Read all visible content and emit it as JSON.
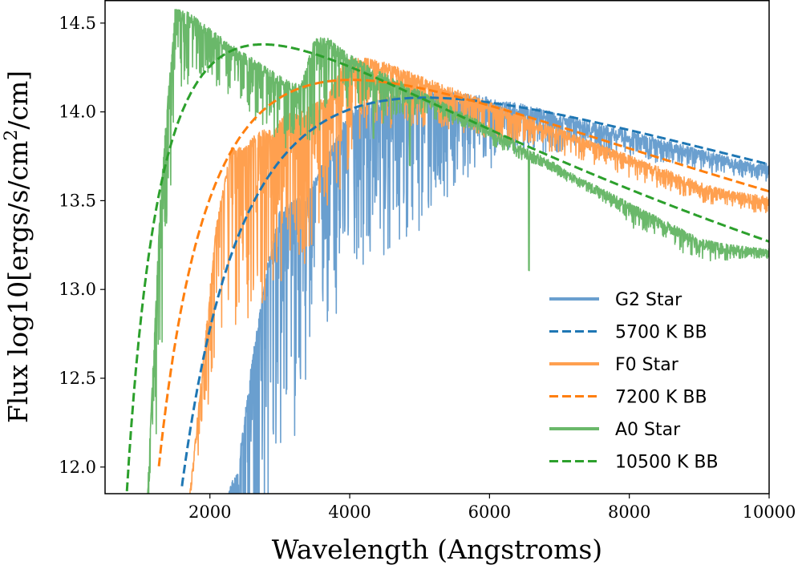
{
  "chart_data": {
    "type": "line",
    "title": "",
    "xlabel": "Wavelength (Angstroms)",
    "ylabel_main": "Flux log10[ergs/s/cm",
    "ylabel_sup": "2",
    "ylabel_tail": "/cm]",
    "xlim": [
      500,
      10000
    ],
    "ylim": [
      11.85,
      14.63
    ],
    "xticks": [
      2000,
      4000,
      6000,
      8000,
      10000
    ],
    "xtick_labels": [
      "2000",
      "4000",
      "6000",
      "8000",
      "10000"
    ],
    "yticks": [
      12.0,
      12.5,
      13.0,
      13.5,
      14.0,
      14.5
    ],
    "ytick_labels": [
      "12.0",
      "12.5",
      "13.0",
      "13.5",
      "14.0",
      "14.5"
    ],
    "legend_position": "lower-right",
    "series": [
      {
        "name": "G2 Star",
        "kind": "spectrum",
        "color": "#6a9fcf",
        "start": 2200,
        "step": 200,
        "envelope": [
          11.8,
          12.0,
          12.6,
          13.1,
          13.45,
          13.5,
          13.55,
          13.7,
          13.85,
          14.02,
          14.05,
          14.07,
          14.09,
          14.1,
          14.1,
          14.12,
          14.12,
          14.1,
          14.1,
          14.08,
          14.06,
          14.05,
          14.03,
          14.01,
          13.99,
          13.97,
          13.95,
          13.93,
          13.91,
          13.89,
          13.87,
          13.85,
          13.83,
          13.81,
          13.79,
          13.77,
          13.75,
          13.73,
          13.71
        ],
        "depth": [
          0.9,
          1.2,
          1.3,
          1.4,
          1.4,
          1.4,
          1.0,
          1.0,
          1.2,
          0.8,
          1.0,
          0.9,
          1.0,
          0.8,
          0.9,
          0.7,
          0.6,
          0.5,
          0.45,
          0.4,
          0.35,
          0.3,
          0.25,
          0.25,
          0.22,
          0.2,
          0.18,
          0.18,
          0.15,
          0.15,
          0.14,
          0.14,
          0.12,
          0.12,
          0.12,
          0.12,
          0.1,
          0.1,
          0.1
        ]
      },
      {
        "name": "5700 K BB",
        "kind": "blackbody",
        "temperature": 5700,
        "color": "#1f77b4",
        "x_start": 1600,
        "peak_flux": 14.08
      },
      {
        "name": "F0 Star",
        "kind": "spectrum",
        "color": "#ffa04f",
        "start": 1700,
        "step": 200,
        "envelope": [
          11.8,
          12.6,
          13.4,
          13.8,
          13.8,
          13.9,
          13.9,
          14.0,
          14.0,
          14.05,
          14.1,
          14.28,
          14.31,
          14.3,
          14.28,
          14.25,
          14.22,
          14.19,
          14.16,
          14.13,
          14.1,
          14.07,
          14.04,
          14.01,
          13.98,
          13.95,
          13.92,
          13.89,
          13.86,
          13.83,
          13.8,
          13.77,
          13.74,
          13.71,
          13.68,
          13.65,
          13.62,
          13.59,
          13.57,
          13.55,
          13.54,
          13.53
        ],
        "depth": [
          0.1,
          0.5,
          0.7,
          1.0,
          1.1,
          1.0,
          1.0,
          1.0,
          0.9,
          0.8,
          0.6,
          0.7,
          0.5,
          0.4,
          0.4,
          0.3,
          0.3,
          0.3,
          0.25,
          0.25,
          0.22,
          0.22,
          0.2,
          0.18,
          0.16,
          0.15,
          0.15,
          0.14,
          0.14,
          0.13,
          0.13,
          0.13,
          0.13,
          0.12,
          0.12,
          0.12,
          0.11,
          0.11,
          0.1,
          0.1,
          0.1,
          0.1
        ]
      },
      {
        "name": "7200 K BB",
        "kind": "blackbody",
        "temperature": 7200,
        "color": "#ff7f0e",
        "x_start": 1270,
        "peak_flux": 14.18
      },
      {
        "name": "A0 Star",
        "kind": "spectrum",
        "color": "#6ab86a",
        "start": 1100,
        "step": 200,
        "envelope": [
          11.8,
          13.6,
          14.58,
          14.56,
          14.5,
          14.44,
          14.38,
          14.33,
          14.28,
          14.23,
          14.18,
          14.15,
          14.42,
          14.42,
          14.35,
          14.3,
          14.26,
          14.22,
          14.18,
          14.14,
          14.1,
          14.06,
          14.02,
          13.98,
          13.94,
          13.89,
          13.85,
          13.8,
          13.76,
          13.72,
          13.67,
          13.63,
          13.59,
          13.55,
          13.51,
          13.47,
          13.43,
          13.39,
          13.35,
          13.31,
          13.28,
          13.26,
          13.25,
          13.24,
          13.23
        ],
        "depth": [
          0.1,
          1.2,
          0.5,
          0.4,
          0.3,
          0.3,
          0.3,
          0.3,
          0.35,
          0.4,
          0.4,
          0.3,
          0.6,
          0.4,
          0.3,
          0.3,
          0.25,
          0.3,
          0.2,
          0.15,
          0.15,
          0.1,
          0.1,
          0.08,
          0.08,
          0.1,
          0.1,
          0.08,
          0.06,
          0.06,
          0.06,
          0.06,
          0.06,
          0.08,
          0.1,
          0.15,
          0.12,
          0.1,
          0.12,
          0.15,
          0.12,
          0.1,
          0.08,
          0.06,
          0.05
        ],
        "features": [
          [
            6563,
            0.68
          ],
          [
            4861,
            0.45
          ],
          [
            4340,
            0.4
          ],
          [
            3970,
            0.3
          ]
        ]
      },
      {
        "name": "10500 K BB",
        "kind": "blackbody",
        "temperature": 10500,
        "color": "#2ca02c",
        "x_start": 780,
        "peak_flux": 14.38
      }
    ]
  }
}
